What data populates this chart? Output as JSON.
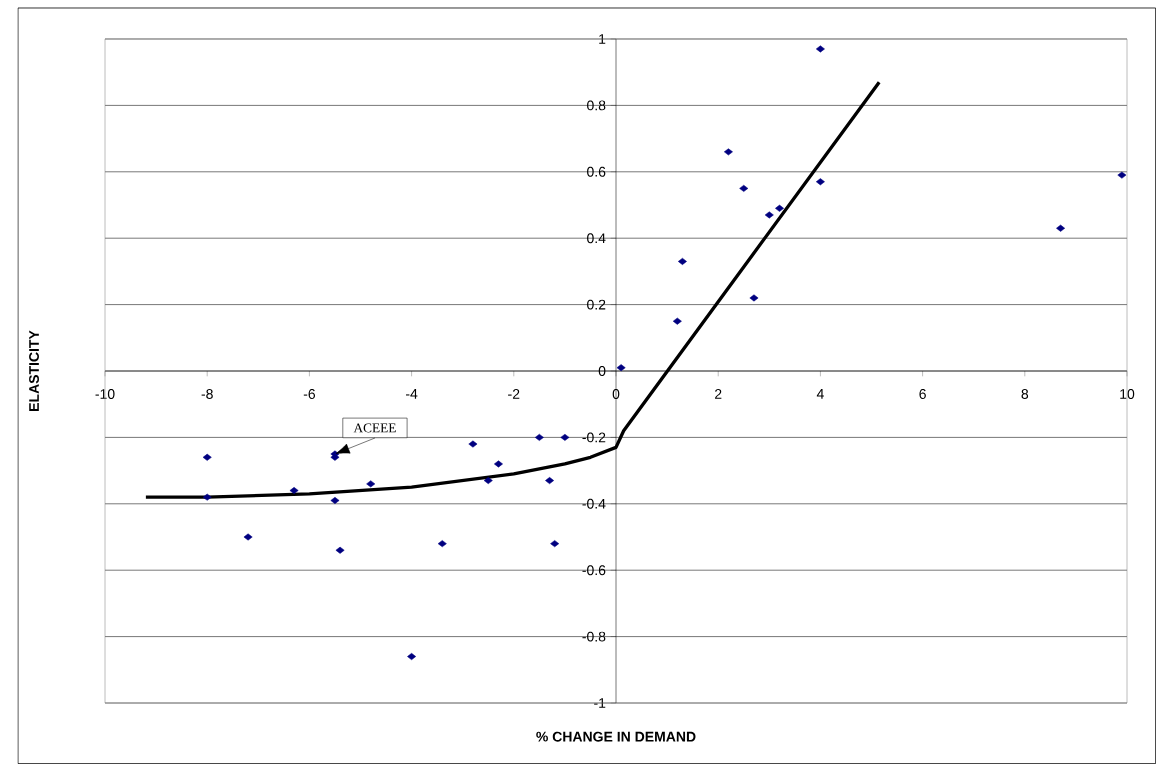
{
  "chart_data": {
    "type": "scatter",
    "xlabel": "% CHANGE IN DEMAND",
    "ylabel": "ELASTICITY",
    "xlim": [
      -10,
      10
    ],
    "ylim": [
      -1,
      1
    ],
    "xticks": [
      -10,
      -8,
      -6,
      -4,
      -2,
      0,
      2,
      4,
      6,
      8,
      10
    ],
    "yticks": [
      -1,
      -0.8,
      -0.6,
      -0.4,
      -0.2,
      0,
      0.2,
      0.4,
      0.6,
      0.8,
      1
    ],
    "grid": "y",
    "series": [
      {
        "type": "scatter",
        "color": "#000080",
        "marker": "diamond",
        "x": [
          -8.0,
          -8.0,
          -7.2,
          -6.3,
          -5.5,
          -5.5,
          -5.5,
          -5.4,
          -4.8,
          -4.0,
          -3.4,
          -2.8,
          -2.5,
          -2.3,
          -1.5,
          -1.3,
          -1.2,
          -1.0,
          0.1,
          1.2,
          1.3,
          2.2,
          2.5,
          2.7,
          3.0,
          3.2,
          4.0,
          4.0,
          8.7,
          9.9
        ],
        "values": [
          -0.26,
          -0.38,
          -0.5,
          -0.36,
          -0.25,
          -0.26,
          -0.39,
          -0.54,
          -0.34,
          -0.86,
          -0.52,
          -0.22,
          -0.33,
          -0.28,
          -0.2,
          -0.33,
          -0.52,
          -0.2,
          0.01,
          0.15,
          0.33,
          0.66,
          0.55,
          0.22,
          0.47,
          0.49,
          0.57,
          0.97,
          0.43,
          0.59
        ]
      },
      {
        "type": "line",
        "color": "#000000",
        "marker": "none",
        "x": [
          -9.2,
          -8,
          -6,
          -4,
          -2,
          -1,
          -0.5,
          0,
          0.15,
          5.15
        ],
        "values": [
          -0.38,
          -0.38,
          -0.37,
          -0.35,
          -0.31,
          -0.28,
          -0.26,
          -0.23,
          -0.18,
          0.87
        ]
      }
    ],
    "annotations": [
      {
        "text": "ACEEE",
        "x": -5.5,
        "y": -0.25
      }
    ]
  }
}
